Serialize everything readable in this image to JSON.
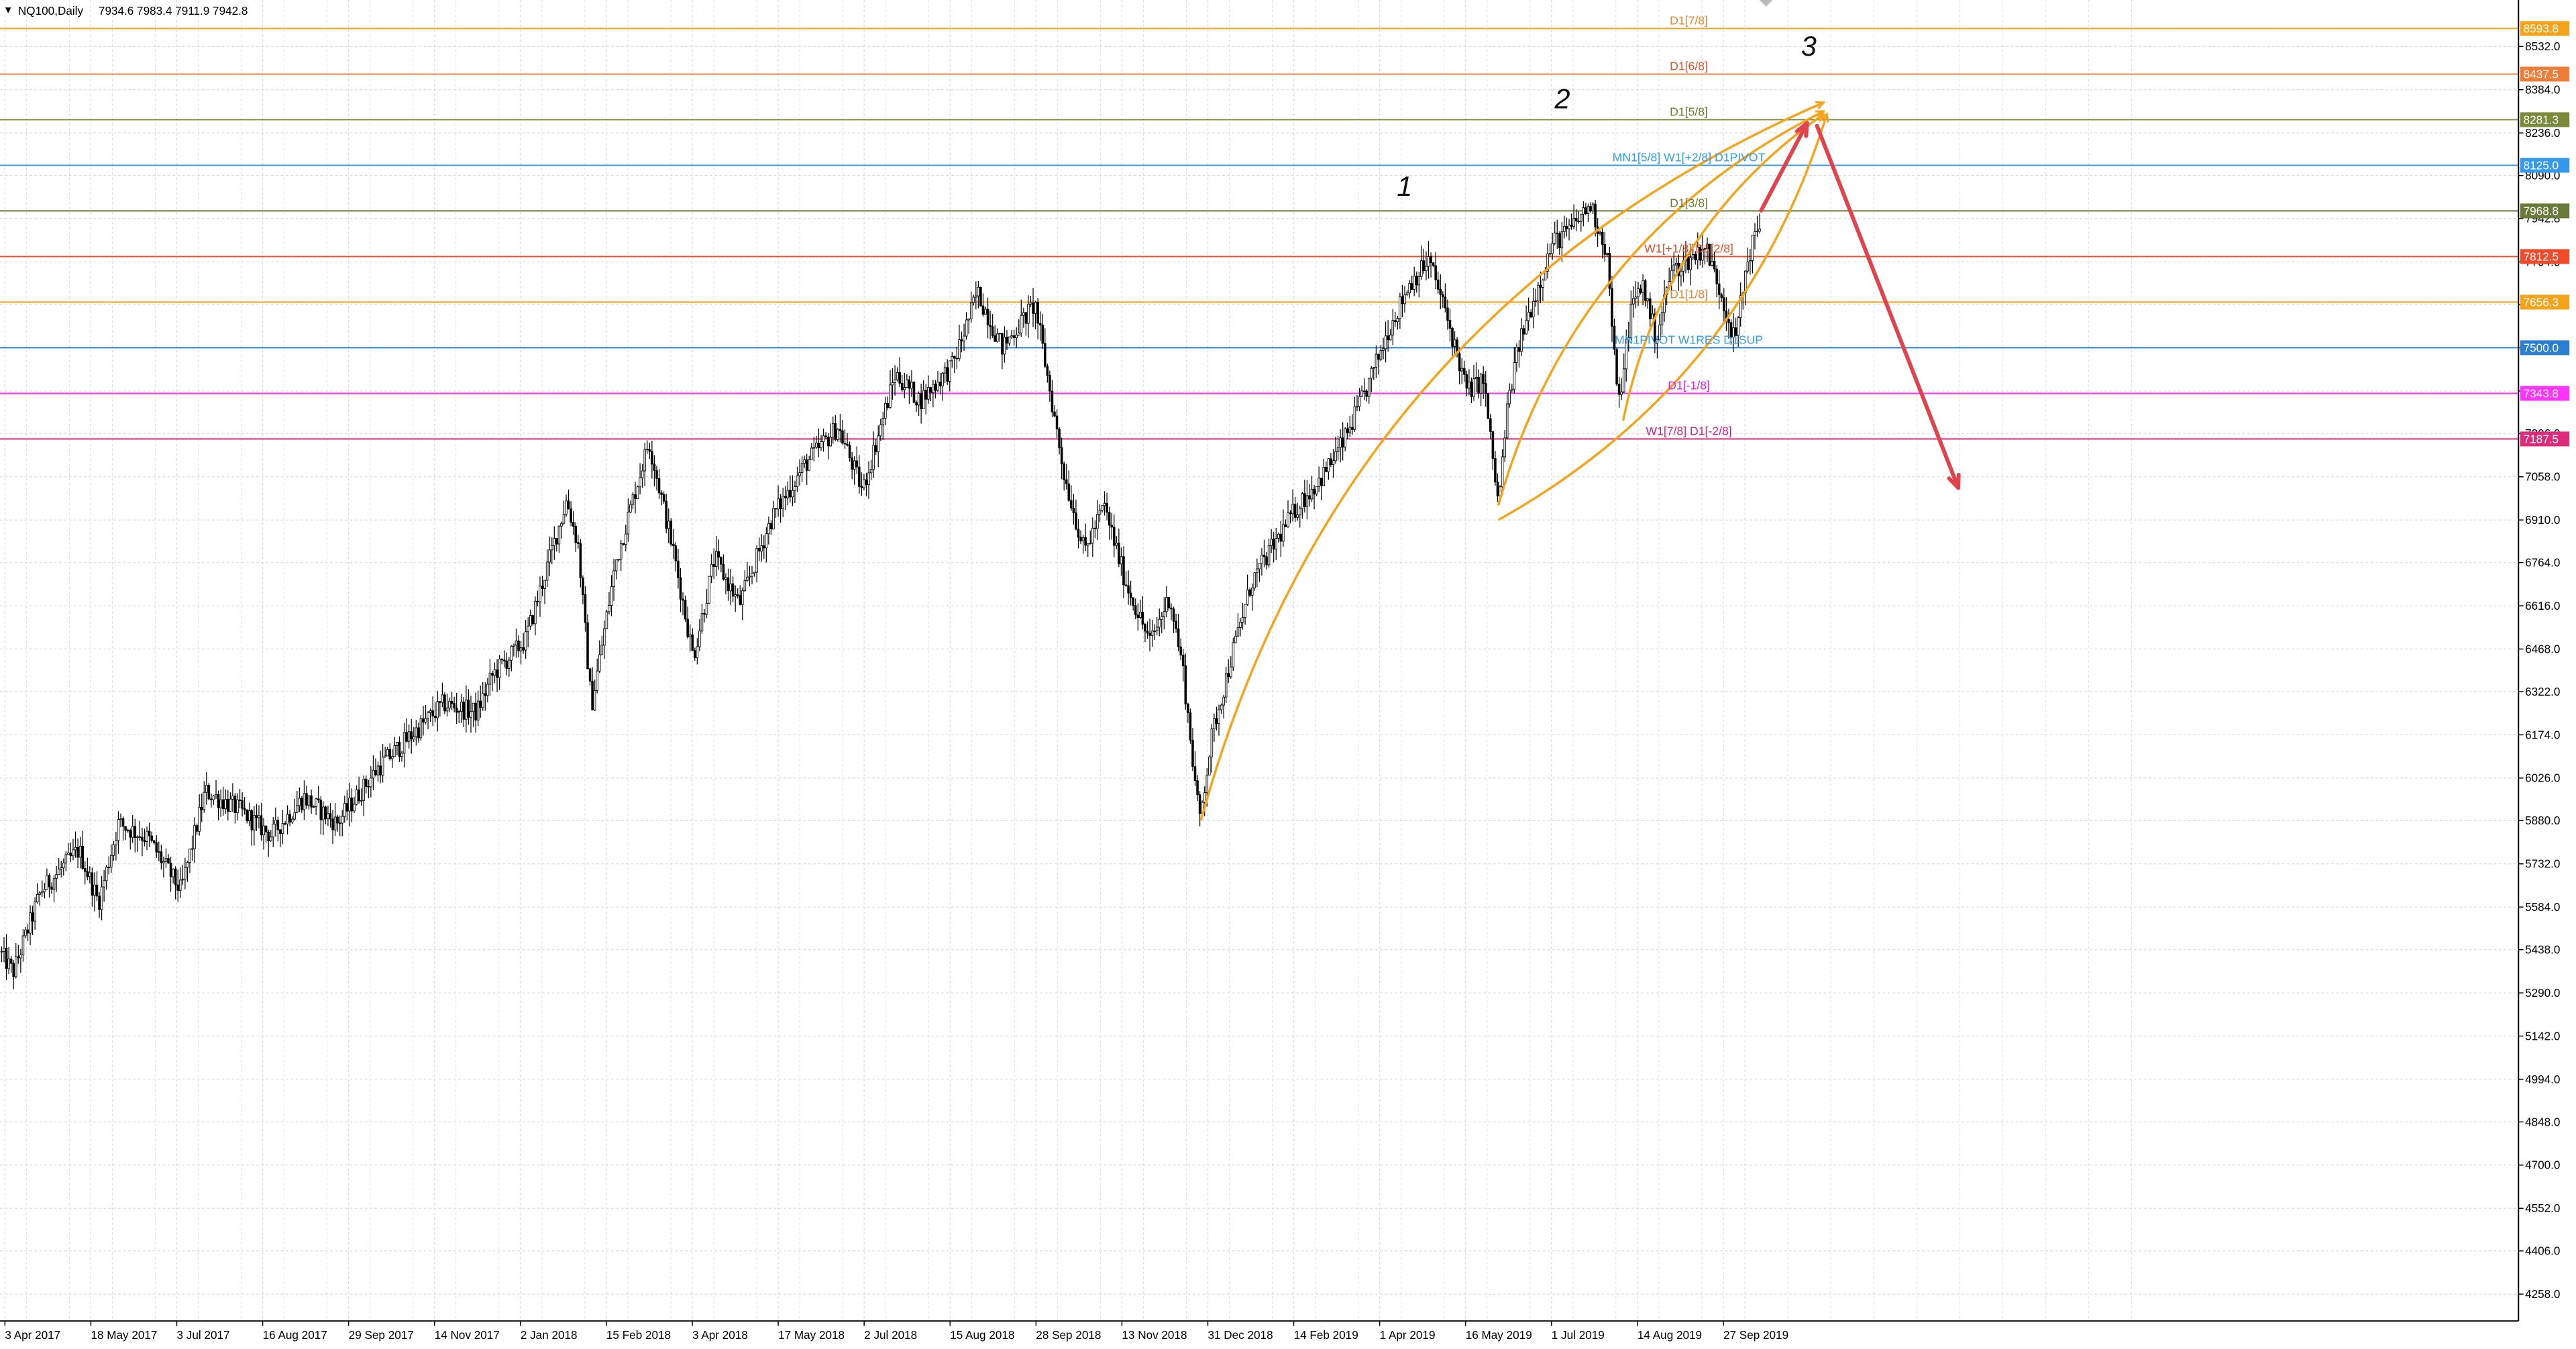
{
  "header": {
    "symbol": "NQ100,Daily",
    "ohlc": "7934.6 7983.4 7911.9 7942.8",
    "menu_glyph": "▼"
  },
  "colors": {
    "background": "#ffffff",
    "grid": "#d9d9d9",
    "candle": "#000000",
    "arc": "#f5a31a",
    "arrow": "#e0434b",
    "text_default": "#000000"
  },
  "chart_data": {
    "type": "candlestick",
    "title": "NQ100,Daily",
    "grid": true,
    "y_ticks": [
      8532.0,
      8384.0,
      8236.0,
      8090.0,
      7942.8,
      7794.0,
      7648.0,
      7500.0,
      7352.0,
      7206.0,
      7058.0,
      6910.0,
      6764.0,
      6616.0,
      6468.0,
      6322.0,
      6174.0,
      6026.0,
      5880.0,
      5732.0,
      5584.0,
      5438.0,
      5290.0,
      5142.0,
      4994.0,
      4848.0,
      4700.0,
      4552.0,
      4406.0,
      4258.0
    ],
    "ylim": [
      4160,
      8660
    ],
    "x_ticks": [
      "3 Apr 2017",
      "18 May 2017",
      "3 Jul 2017",
      "16 Aug 2017",
      "29 Sep 2017",
      "14 Nov 2017",
      "2 Jan 2018",
      "15 Feb 2018",
      "3 Apr 2018",
      "17 May 2018",
      "2 Jul 2018",
      "15 Aug 2018",
      "28 Sep 2018",
      "13 Nov 2018",
      "31 Dec 2018",
      "14 Feb 2019",
      "1 Apr 2019",
      "16 May 2019",
      "1 Jul 2019",
      "14 Aug 2019",
      "27 Sep 2019"
    ],
    "price_path": [
      [
        0,
        5430
      ],
      [
        8,
        5360
      ],
      [
        25,
        5640
      ],
      [
        48,
        5780
      ],
      [
        60,
        5600
      ],
      [
        72,
        5870
      ],
      [
        90,
        5820
      ],
      [
        110,
        5640
      ],
      [
        125,
        5980
      ],
      [
        145,
        5920
      ],
      [
        165,
        5830
      ],
      [
        185,
        5960
      ],
      [
        205,
        5870
      ],
      [
        230,
        6060
      ],
      [
        248,
        6160
      ],
      [
        270,
        6280
      ],
      [
        290,
        6250
      ],
      [
        300,
        6380
      ],
      [
        320,
        6500
      ],
      [
        345,
        6980
      ],
      [
        352,
        6820
      ],
      [
        360,
        6270
      ],
      [
        375,
        6770
      ],
      [
        395,
        7180
      ],
      [
        410,
        6800
      ],
      [
        422,
        6440
      ],
      [
        435,
        6780
      ],
      [
        450,
        6620
      ],
      [
        470,
        6920
      ],
      [
        490,
        7100
      ],
      [
        510,
        7230
      ],
      [
        525,
        7010
      ],
      [
        545,
        7410
      ],
      [
        560,
        7320
      ],
      [
        580,
        7440
      ],
      [
        595,
        7690
      ],
      [
        610,
        7500
      ],
      [
        630,
        7650
      ],
      [
        648,
        7060
      ],
      [
        660,
        6800
      ],
      [
        672,
        6960
      ],
      [
        685,
        6700
      ],
      [
        700,
        6490
      ],
      [
        712,
        6650
      ],
      [
        720,
        6400
      ],
      [
        730,
        5880
      ],
      [
        738,
        6180
      ],
      [
        750,
        6450
      ],
      [
        762,
        6700
      ],
      [
        775,
        6820
      ],
      [
        790,
        6960
      ],
      [
        805,
        7060
      ],
      [
        818,
        7180
      ],
      [
        832,
        7360
      ],
      [
        845,
        7560
      ],
      [
        858,
        7720
      ],
      [
        870,
        7800
      ],
      [
        880,
        7620
      ],
      [
        893,
        7350
      ],
      [
        903,
        7390
      ],
      [
        912,
        6960
      ],
      [
        918,
        7320
      ],
      [
        925,
        7520
      ],
      [
        935,
        7690
      ],
      [
        945,
        7860
      ],
      [
        955,
        7900
      ],
      [
        968,
        7990
      ],
      [
        978,
        7830
      ],
      [
        985,
        7290
      ],
      [
        993,
        7640
      ],
      [
        1000,
        7720
      ],
      [
        1008,
        7530
      ],
      [
        1017,
        7760
      ],
      [
        1028,
        7800
      ],
      [
        1038,
        7850
      ],
      [
        1048,
        7680
      ],
      [
        1056,
        7520
      ],
      [
        1064,
        7810
      ],
      [
        1072,
        7942.8
      ]
    ],
    "levels": [
      {
        "value": 8593.8,
        "label": "D1[7/8]",
        "color": "#f5a31a",
        "badge": "8593.8",
        "label_color": "#e8862a"
      },
      {
        "value": 8437.5,
        "label": "D1[6/8]",
        "color": "#f07c3a",
        "badge": "8437.5",
        "label_color": "#e0502a"
      },
      {
        "value": 8281.3,
        "label": "D1[5/8]",
        "color": "#7a8a3a",
        "badge": "8281.3",
        "label_color": "#6a7a2a"
      },
      {
        "value": 8125.0,
        "label": "MN1[5/8] W1[+2/8] D1PIVOT",
        "color": "#3399ee",
        "badge": "8125.0",
        "label_color": "#3399ee"
      },
      {
        "value": 7968.8,
        "label": "D1[3/8]",
        "color": "#6a7a3a",
        "badge": "7968.8",
        "label_color": "#6a7a2a"
      },
      {
        "value": 7812.5,
        "label": "W1[+1/8] D1[2/8]",
        "color": "#f04a2a",
        "badge": "7812.5",
        "label_color": "#e0502a"
      },
      {
        "value": 7656.3,
        "label": "D1[1/8]",
        "color": "#f5a31a",
        "badge": "7656.3",
        "label_color": "#e8862a"
      },
      {
        "value": 7500.0,
        "label": "MN1PIVOT W1RES D1SUP",
        "color": "#2a7fd4",
        "badge": "7500.0",
        "label_color": "#3399ee"
      },
      {
        "value": 7343.8,
        "label": "D1[-1/8]",
        "color": "#ff33ff",
        "badge": "7343.8",
        "label_color": "#dd22dd"
      },
      {
        "value": 7187.5,
        "label": "W1[7/8] D1[-2/8]",
        "color": "#dd2a7a",
        "badge": "7187.5",
        "label_color": "#cc2288"
      }
    ],
    "annotations": [
      {
        "text": "1",
        "x": 855,
        "y": 8020
      },
      {
        "text": "2",
        "x": 951,
        "y": 8320
      },
      {
        "text": "3",
        "x": 1101,
        "y": 8500
      }
    ],
    "arcs": [
      {
        "start": [
          731,
          5880
        ],
        "end": [
          1110,
          8340
        ],
        "bulge": 0.24
      },
      {
        "start": [
          912,
          6960
        ],
        "end": [
          1110,
          8310
        ],
        "bulge": 0.22
      },
      {
        "start": [
          988,
          7250
        ],
        "end": [
          1110,
          8300
        ],
        "bulge": 0.2
      },
      {
        "start": [
          912,
          6910
        ],
        "end": [
          1112,
          8300
        ],
        "bulge": -0.2
      }
    ],
    "arrows": [
      {
        "from": [
          1072,
          7970
        ],
        "to": [
          1100,
          8270
        ]
      },
      {
        "from": [
          1106,
          8260
        ],
        "to": [
          1192,
          7020
        ]
      }
    ]
  }
}
